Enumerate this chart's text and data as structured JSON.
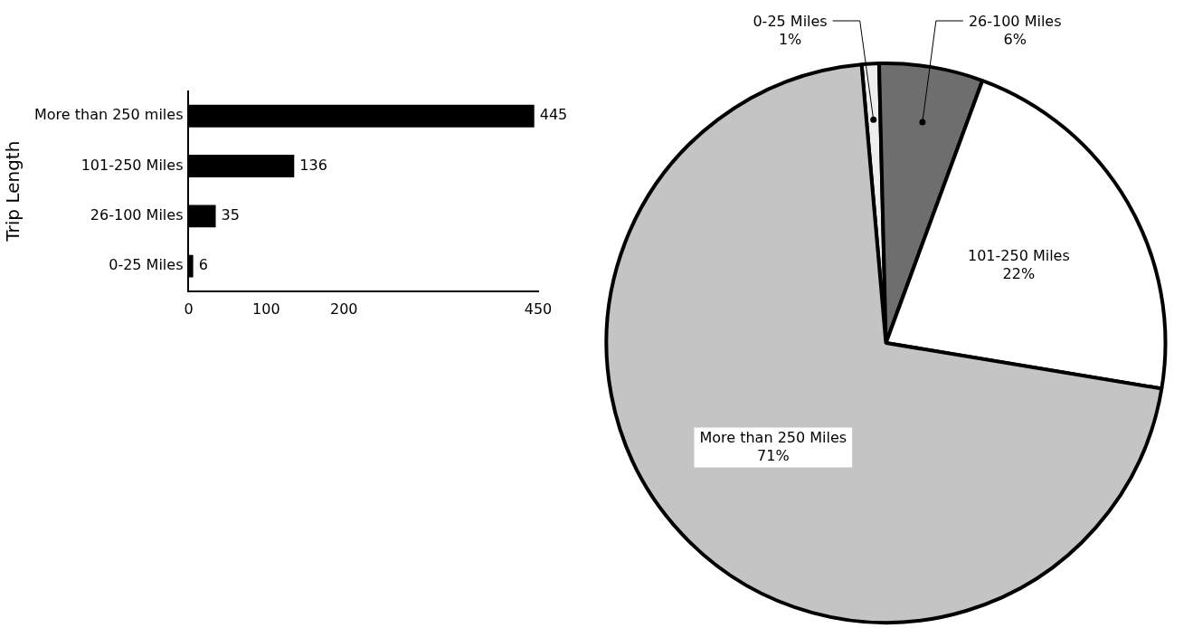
{
  "chart_data": [
    {
      "type": "bar",
      "orientation": "horizontal",
      "ylabel": "Trip Length",
      "categories": [
        "More than 250 miles",
        "101-250 Miles",
        "26-100 Miles",
        "0-25 Miles"
      ],
      "values": [
        445,
        136,
        35,
        6
      ],
      "color": "#000000",
      "xlim": [
        0,
        450
      ],
      "xticks": [
        0,
        100,
        200,
        450
      ],
      "data_labels": true,
      "grid": false,
      "legend": false
    },
    {
      "type": "pie",
      "categories": [
        "0-25 Miles",
        "26-100 Miles",
        "101-250 Miles",
        "More than 250 Miles"
      ],
      "values": [
        1,
        6,
        22,
        71
      ],
      "colors": [
        "#eeeeee",
        "#6e6e6e",
        "#ffffff",
        "#c4c4c4"
      ],
      "value_labels": [
        "1%",
        "6%",
        "22%",
        "71%"
      ],
      "legend": false
    }
  ]
}
